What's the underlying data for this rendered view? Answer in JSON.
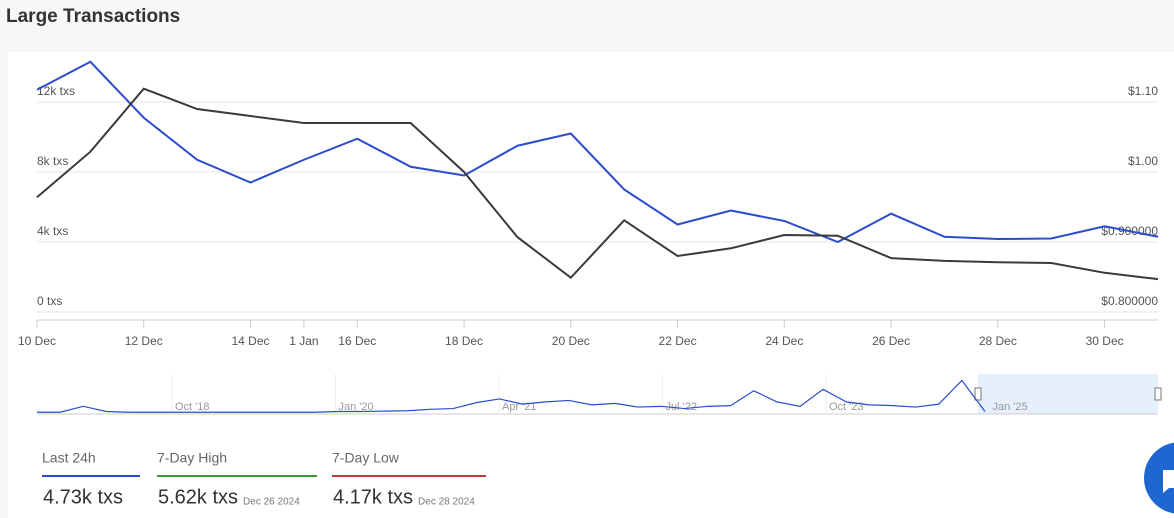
{
  "chart_data": {
    "type": "line",
    "title": "Large Transactions",
    "categories": [
      "10 Dec",
      null,
      "12 Dec",
      null,
      "14 Dec",
      "1 Jan",
      "16 Dec",
      null,
      "18 Dec",
      null,
      "20 Dec",
      null,
      "22 Dec",
      null,
      "24 Dec",
      null,
      "26 Dec",
      null,
      "28 Dec",
      null,
      "30 Dec",
      null
    ],
    "series": [
      {
        "color": "#2b4ccf",
        "values": [
          12700,
          14300,
          11100,
          8700,
          7400,
          8700,
          9900,
          8300,
          7800,
          9500,
          10200,
          7000,
          5000,
          5800,
          5200,
          4000,
          5620,
          4300,
          4170,
          4200,
          4900,
          4300
        ]
      },
      {
        "color": "#3a3a3a",
        "axis": "y2",
        "values": [
          0.964,
          1.029,
          1.119,
          1.09,
          1.08,
          1.07,
          1.07,
          1.07,
          1.0,
          0.907,
          0.849,
          0.931,
          0.88,
          0.891,
          0.91,
          0.909,
          0.877,
          0.873,
          0.871,
          0.87,
          0.856,
          0.847
        ]
      }
    ],
    "ylim": [
      0,
      15000
    ],
    "yticks": [
      {
        "value": 0,
        "label": "0 txs"
      },
      {
        "value": 4000,
        "label": "4k txs"
      },
      {
        "value": 8000,
        "label": "8k txs"
      },
      {
        "value": 12000,
        "label": "12k txs"
      }
    ],
    "y2lim": [
      0.8,
      1.175
    ],
    "y2ticks": [
      {
        "value": 0.8,
        "label": "$0.800000"
      },
      {
        "value": 0.9,
        "label": "$0.900000"
      },
      {
        "value": 1.0,
        "label": "$1.00"
      },
      {
        "value": 1.1,
        "label": "$1.10"
      }
    ],
    "grid": true,
    "navigator": {
      "labels": [
        "Oct '18",
        "Jan '20",
        "Apr '21",
        "Jul '22",
        "Oct '23",
        "Jan '25"
      ],
      "color": "#2b4ccf",
      "ylim": [
        0,
        100
      ],
      "values": [
        2,
        2,
        18,
        4,
        2,
        2,
        2,
        2,
        2,
        2,
        2,
        2,
        2,
        4,
        4,
        5,
        6,
        10,
        12,
        28,
        38,
        24,
        30,
        34,
        22,
        26,
        16,
        18,
        12,
        18,
        20,
        60,
        30,
        18,
        64,
        30,
        22,
        20,
        16,
        24,
        88,
        4
      ]
    },
    "stats": [
      {
        "label": "Last 24h",
        "value": "4.73k txs",
        "color": "#2b4ccf"
      },
      {
        "label": "7-Day High",
        "value": "5.62k txs",
        "date": "Dec 26 2024",
        "color": "#3a9a3a"
      },
      {
        "label": "7-Day Low",
        "value": "4.17k txs",
        "date": "Dec 28 2024",
        "color": "#b83a3a"
      }
    ]
  }
}
